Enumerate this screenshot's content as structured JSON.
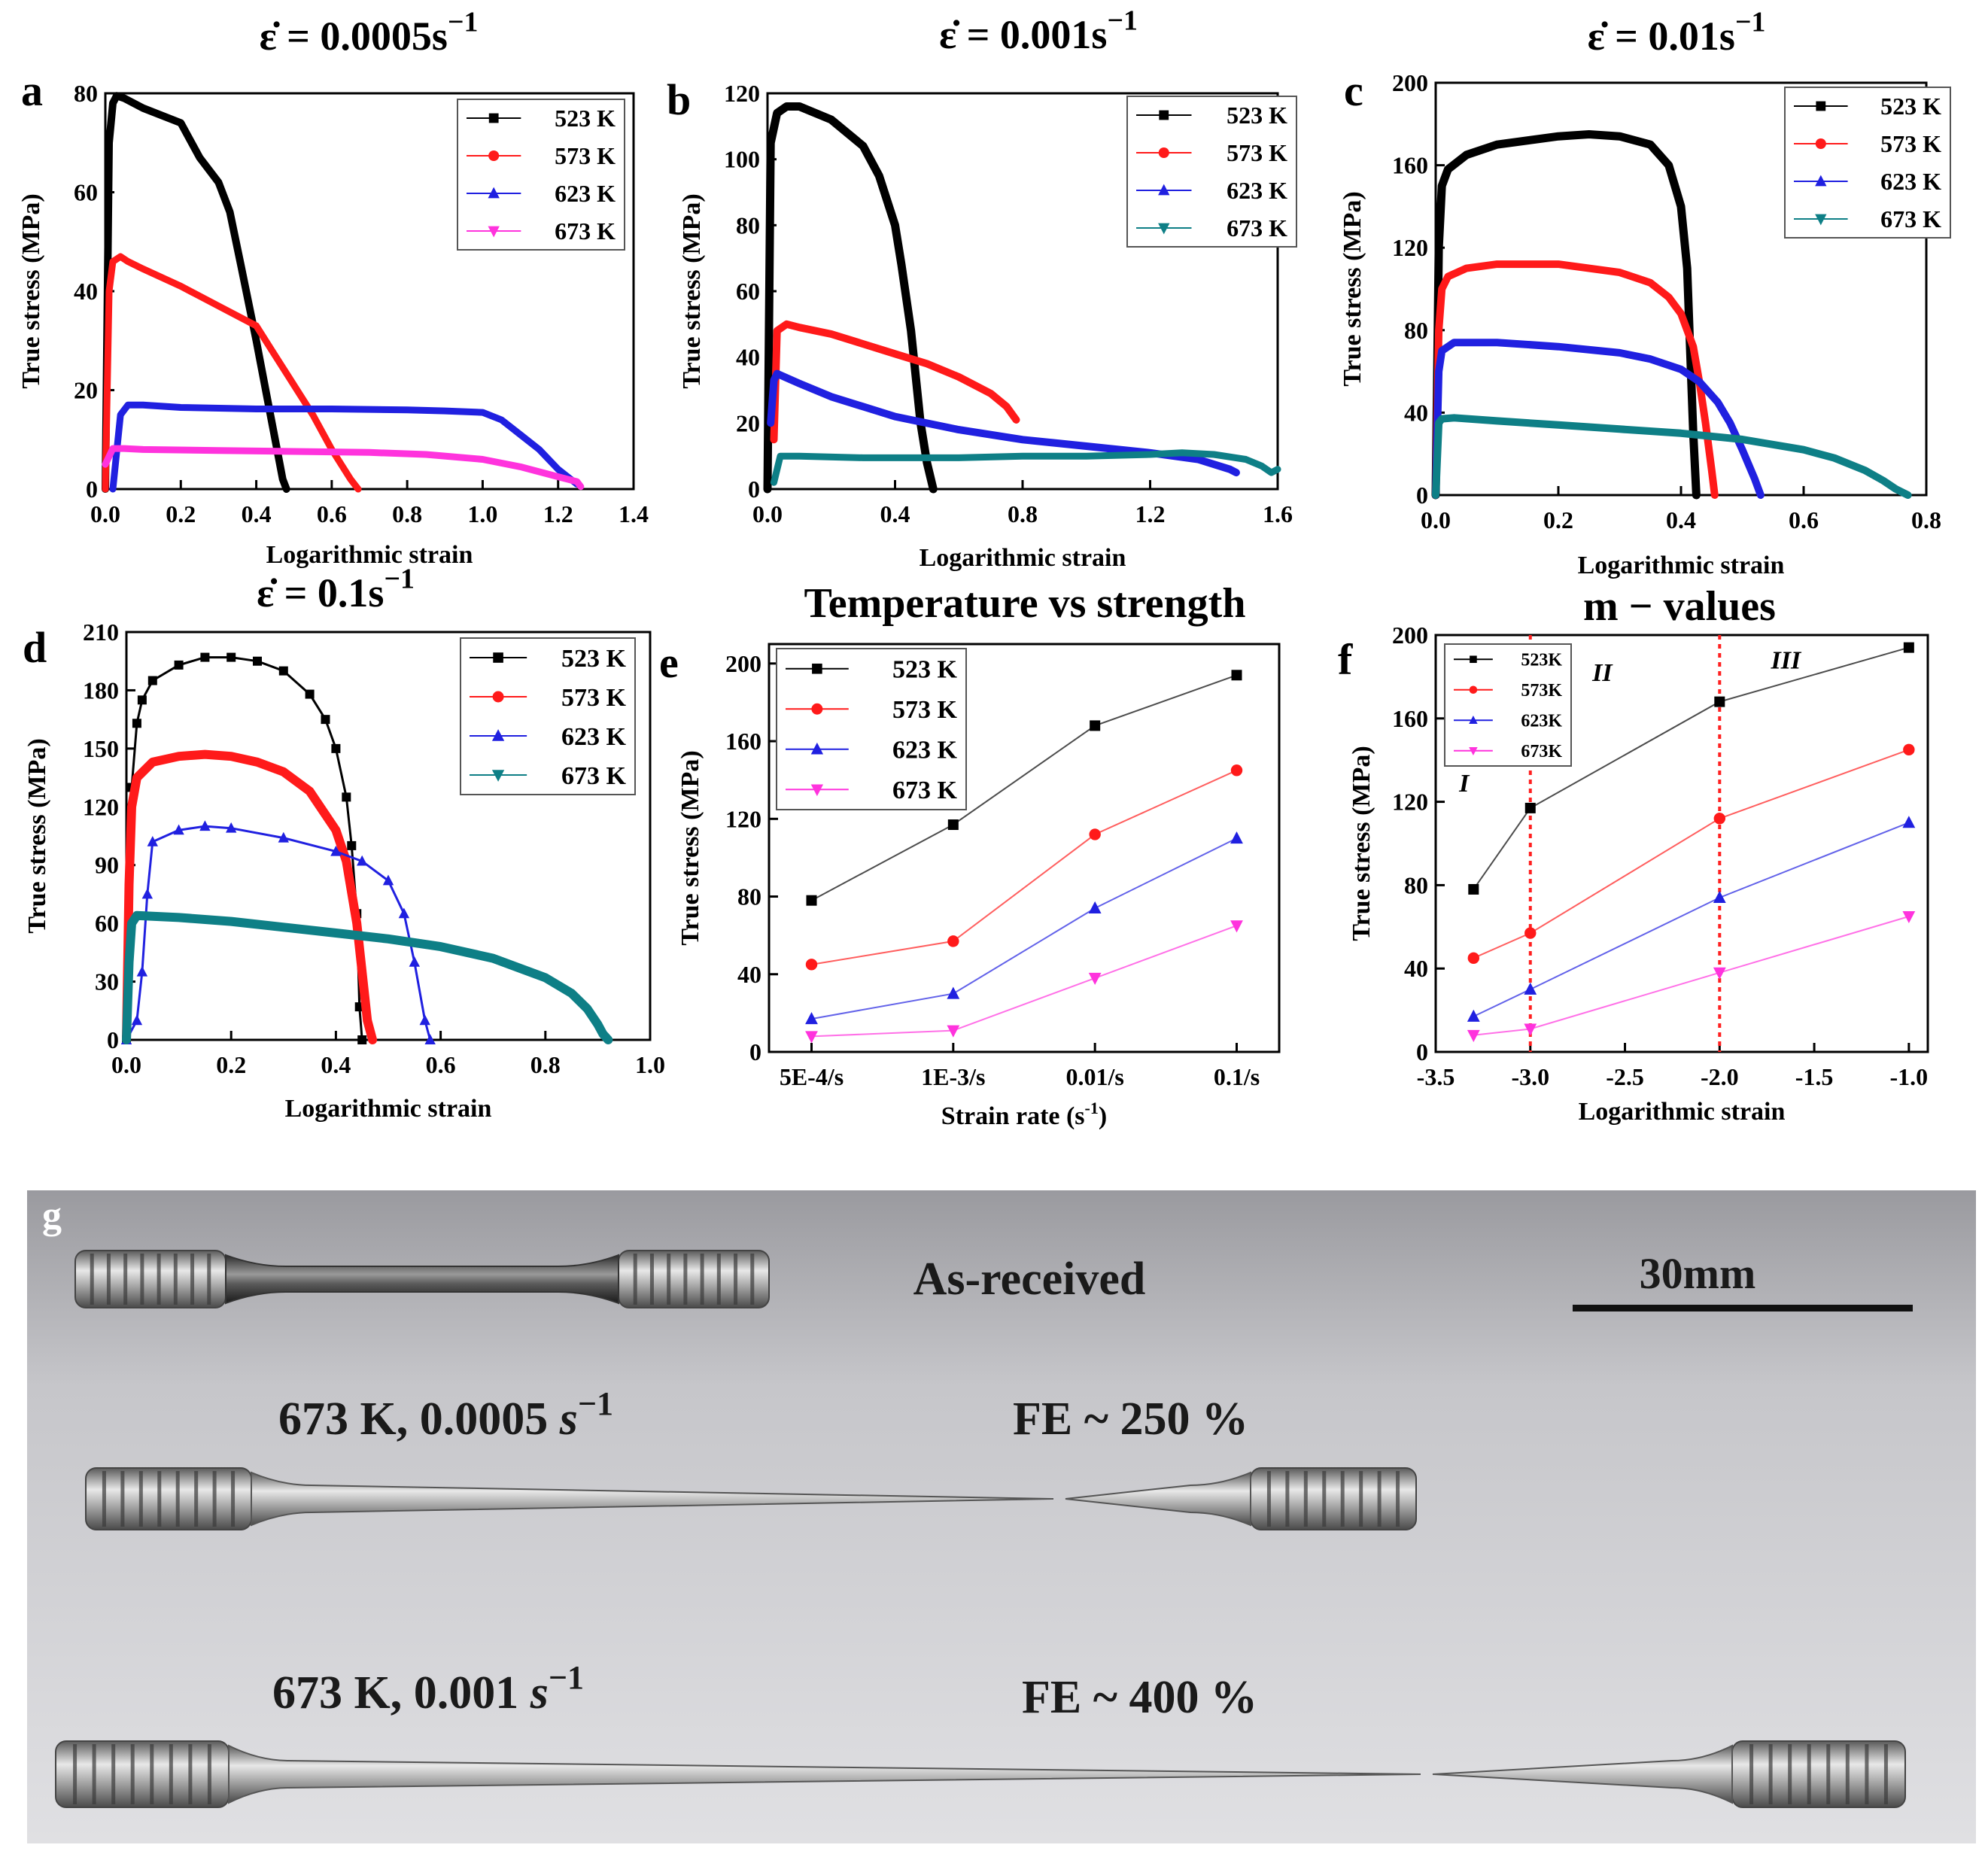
{
  "colors": {
    "c523": "#000000",
    "c573": "#ff1a1a",
    "c623": "#2020e0",
    "c673": "#ff33dd",
    "c673teal": "#0e7f86",
    "guide": "#ff2020"
  },
  "chart_data": [
    {
      "panel": "a",
      "type": "line",
      "title_prefix": "ε̇ = 0.0005s",
      "title_exp": "−1",
      "xlabel": "Logarithmic strain",
      "ylabel": "True stress (MPa)",
      "xlim": [
        0,
        1.4
      ],
      "ylim": [
        0,
        80
      ],
      "xticks": [
        "0.0",
        "0.2",
        "0.4",
        "0.6",
        "0.8",
        "1.0",
        "1.2",
        "1.4"
      ],
      "yticks": [
        "0",
        "20",
        "40",
        "60",
        "80"
      ],
      "legend": [
        "523 K",
        "573 K",
        "623 K",
        "673 K"
      ],
      "series": [
        {
          "name": "523 K",
          "color": "c523",
          "marker": "square",
          "width": 10,
          "x": [
            0,
            0.01,
            0.02,
            0.03,
            0.05,
            0.1,
            0.2,
            0.25,
            0.3,
            0.33,
            0.36,
            0.4,
            0.43,
            0.46,
            0.47,
            0.48
          ],
          "y": [
            0,
            70,
            78,
            79.5,
            79,
            77,
            74,
            67,
            62,
            56,
            45,
            30,
            18,
            6,
            2,
            0
          ]
        },
        {
          "name": "573 K",
          "color": "c573",
          "marker": "circle",
          "width": 9,
          "x": [
            0,
            0.01,
            0.02,
            0.04,
            0.06,
            0.1,
            0.2,
            0.3,
            0.4,
            0.45,
            0.5,
            0.55,
            0.6,
            0.65,
            0.67
          ],
          "y": [
            0,
            40,
            46,
            47,
            46,
            44.5,
            41,
            37,
            33,
            27,
            21,
            15,
            8,
            2,
            0
          ]
        },
        {
          "name": "623 K",
          "color": "c623",
          "marker": "triangle-up",
          "width": 9,
          "x": [
            0.02,
            0.04,
            0.06,
            0.1,
            0.2,
            0.4,
            0.6,
            0.8,
            0.9,
            1.0,
            1.05,
            1.1,
            1.15,
            1.2,
            1.25
          ],
          "y": [
            0,
            15,
            17,
            17,
            16.5,
            16.2,
            16.2,
            16,
            15.8,
            15.5,
            14,
            11,
            8,
            4,
            1
          ]
        },
        {
          "name": "673 K",
          "color": "c673",
          "marker": "triangle-down",
          "width": 9,
          "x": [
            0,
            0.02,
            0.05,
            0.1,
            0.3,
            0.5,
            0.7,
            0.85,
            1.0,
            1.1,
            1.15,
            1.2,
            1.25,
            1.26
          ],
          "y": [
            5,
            8.2,
            8.2,
            8,
            7.8,
            7.6,
            7.4,
            7,
            6,
            4.5,
            3.5,
            2.5,
            1.5,
            0.5
          ]
        }
      ]
    },
    {
      "panel": "b",
      "type": "line",
      "title_prefix": "ε̇ = 0.001s",
      "title_exp": "−1",
      "xlabel": "Logarithmic strain",
      "ylabel": "True stress (MPa)",
      "xlim": [
        0,
        1.6
      ],
      "ylim": [
        0,
        120
      ],
      "xticks": [
        "0.0",
        "0.4",
        "0.8",
        "1.2",
        "1.6"
      ],
      "yticks": [
        "0",
        "20",
        "40",
        "60",
        "80",
        "100",
        "120"
      ],
      "legend": [
        "523 K",
        "573 K",
        "623 K",
        "673 K"
      ],
      "series": [
        {
          "name": "523 K",
          "color": "c523",
          "marker": "square",
          "width": 11,
          "x": [
            0,
            0.01,
            0.03,
            0.06,
            0.1,
            0.2,
            0.3,
            0.35,
            0.4,
            0.42,
            0.45,
            0.48,
            0.5,
            0.52
          ],
          "y": [
            0,
            105,
            114,
            116,
            116,
            112,
            104,
            95,
            80,
            68,
            48,
            20,
            8,
            0
          ]
        },
        {
          "name": "573 K",
          "color": "c573",
          "marker": "circle",
          "width": 10,
          "x": [
            0.02,
            0.03,
            0.06,
            0.1,
            0.2,
            0.3,
            0.4,
            0.5,
            0.6,
            0.7,
            0.75,
            0.78
          ],
          "y": [
            15,
            48,
            50,
            49,
            47,
            44,
            41,
            38,
            34,
            29,
            25,
            21
          ]
        },
        {
          "name": "623 K",
          "color": "c623",
          "marker": "triangle-up",
          "width": 10,
          "x": [
            0.01,
            0.02,
            0.03,
            0.1,
            0.2,
            0.4,
            0.6,
            0.8,
            1.0,
            1.2,
            1.35,
            1.45,
            1.47
          ],
          "y": [
            20,
            33,
            35,
            32,
            28,
            22,
            18,
            15,
            13,
            11,
            9,
            6,
            5
          ]
        },
        {
          "name": "673 K",
          "color": "c673teal",
          "marker": "triangle-down",
          "width": 9,
          "x": [
            0.02,
            0.04,
            0.1,
            0.3,
            0.6,
            0.8,
            1.0,
            1.2,
            1.3,
            1.4,
            1.5,
            1.55,
            1.58,
            1.6
          ],
          "y": [
            2,
            10,
            10,
            9.5,
            9.5,
            10,
            10,
            10.5,
            11,
            10.5,
            9,
            7,
            5,
            6
          ]
        }
      ]
    },
    {
      "panel": "c",
      "type": "line",
      "title_prefix": "ε̇ = 0.01s",
      "title_exp": "−1",
      "xlabel": "Logarithmic strain",
      "ylabel": "True stress (MPa)",
      "xlim": [
        0,
        0.8
      ],
      "ylim": [
        0,
        200
      ],
      "xticks": [
        "0.0",
        "0.2",
        "0.4",
        "0.6",
        "0.8"
      ],
      "yticks": [
        "0",
        "40",
        "80",
        "120",
        "160",
        "200"
      ],
      "legend": [
        "523 K",
        "573 K",
        "623 K",
        "673 K"
      ],
      "series": [
        {
          "name": "523 K",
          "color": "c523",
          "marker": "square",
          "width": 11,
          "x": [
            0,
            0.005,
            0.01,
            0.02,
            0.05,
            0.1,
            0.2,
            0.25,
            0.3,
            0.35,
            0.38,
            0.4,
            0.41,
            0.415,
            0.42,
            0.425
          ],
          "y": [
            0,
            120,
            150,
            158,
            165,
            170,
            174,
            175,
            174,
            170,
            160,
            140,
            110,
            70,
            30,
            0
          ]
        },
        {
          "name": "573 K",
          "color": "c573",
          "marker": "circle",
          "width": 10,
          "x": [
            0,
            0.005,
            0.01,
            0.02,
            0.05,
            0.1,
            0.2,
            0.3,
            0.35,
            0.38,
            0.4,
            0.42,
            0.43,
            0.44,
            0.45,
            0.455
          ],
          "y": [
            0,
            80,
            100,
            106,
            110,
            112,
            112,
            108,
            103,
            96,
            88,
            72,
            55,
            35,
            12,
            0
          ]
        },
        {
          "name": "623 K",
          "color": "c623",
          "marker": "triangle-up",
          "width": 10,
          "x": [
            0,
            0.005,
            0.01,
            0.03,
            0.1,
            0.2,
            0.3,
            0.35,
            0.4,
            0.43,
            0.46,
            0.48,
            0.5,
            0.52,
            0.53
          ],
          "y": [
            0,
            60,
            70,
            74,
            74,
            72,
            69,
            66,
            61,
            55,
            45,
            35,
            22,
            8,
            0
          ]
        },
        {
          "name": "673 K",
          "color": "c673teal",
          "marker": "triangle-down",
          "width": 10,
          "x": [
            0,
            0.005,
            0.01,
            0.03,
            0.1,
            0.2,
            0.3,
            0.4,
            0.5,
            0.6,
            0.65,
            0.7,
            0.73,
            0.75,
            0.77
          ],
          "y": [
            0,
            35,
            37,
            37.5,
            36,
            34,
            32,
            30,
            27,
            22,
            18,
            12,
            7,
            3,
            0
          ]
        }
      ]
    },
    {
      "panel": "d",
      "type": "line",
      "title_prefix": "ε̇ = 0.1s",
      "title_exp": "−1",
      "xlabel": "Logarithmic strain",
      "ylabel": "True stress (MPa)",
      "xlim": [
        0,
        1.0
      ],
      "ylim": [
        0,
        210
      ],
      "xticks": [
        "0.0",
        "0.2",
        "0.4",
        "0.6",
        "0.8",
        "1.0"
      ],
      "yticks": [
        "0",
        "30",
        "60",
        "90",
        "120",
        "150",
        "180",
        "210"
      ],
      "legend": [
        "523 K",
        "573 K",
        "623 K",
        "673  K"
      ],
      "series": [
        {
          "name": "523 K",
          "color": "c523",
          "marker": "square",
          "width": 3,
          "x": [
            0,
            0.01,
            0.02,
            0.03,
            0.05,
            0.1,
            0.15,
            0.2,
            0.25,
            0.3,
            0.35,
            0.38,
            0.4,
            0.42,
            0.43,
            0.44,
            0.445,
            0.45
          ],
          "y": [
            0,
            130,
            163,
            175,
            185,
            193,
            197,
            197,
            195,
            190,
            178,
            165,
            150,
            125,
            100,
            65,
            17,
            0
          ]
        },
        {
          "name": "573 K",
          "color": "c573",
          "marker": "circle",
          "width": 12,
          "x": [
            0,
            0.005,
            0.01,
            0.02,
            0.05,
            0.1,
            0.15,
            0.2,
            0.25,
            0.3,
            0.35,
            0.4,
            0.42,
            0.44,
            0.45,
            0.46,
            0.47
          ],
          "y": [
            0,
            80,
            120,
            135,
            143,
            146,
            147,
            146,
            143,
            138,
            128,
            108,
            92,
            60,
            35,
            10,
            0
          ]
        },
        {
          "name": "623 K",
          "color": "c623",
          "marker": "triangle-up",
          "width": 3,
          "x": [
            0,
            0.02,
            0.03,
            0.04,
            0.05,
            0.1,
            0.15,
            0.2,
            0.3,
            0.4,
            0.45,
            0.5,
            0.53,
            0.55,
            0.57,
            0.58
          ],
          "y": [
            0,
            10,
            35,
            75,
            102,
            108,
            110,
            109,
            104,
            97,
            92,
            82,
            65,
            40,
            10,
            0
          ]
        },
        {
          "name": "673  K",
          "color": "c673teal",
          "marker": "triangle-down",
          "width": 12,
          "x": [
            0,
            0.005,
            0.01,
            0.02,
            0.1,
            0.2,
            0.3,
            0.4,
            0.5,
            0.6,
            0.7,
            0.8,
            0.85,
            0.88,
            0.9,
            0.91,
            0.92
          ],
          "y": [
            0,
            40,
            60,
            64,
            63,
            61,
            58,
            55,
            52,
            48,
            42,
            32,
            24,
            16,
            8,
            3,
            0
          ]
        }
      ]
    },
    {
      "panel": "e",
      "type": "line",
      "title": "Temperature vs strength",
      "xlabel": "Strain rate (s",
      "xlabel_exp": "-1",
      "xlabel_suffix": ")",
      "ylabel": "True stress (MPa)",
      "categories": [
        "5E-4/s",
        "1E-3/s",
        "0.01/s",
        "0.1/s"
      ],
      "ylim": [
        0,
        210
      ],
      "yticks": [
        "0",
        "40",
        "80",
        "120",
        "160",
        "200"
      ],
      "legend": [
        "523 K",
        "573 K",
        "623 K",
        "673 K"
      ],
      "series": [
        {
          "name": "523 K",
          "color": "c523",
          "marker": "square",
          "values": [
            78,
            117,
            168,
            194
          ]
        },
        {
          "name": "573 K",
          "color": "c573",
          "marker": "circle",
          "values": [
            45,
            57,
            112,
            145
          ]
        },
        {
          "name": "623 K",
          "color": "c623",
          "marker": "triangle-up",
          "values": [
            17,
            30,
            74,
            110
          ]
        },
        {
          "name": "673 K",
          "color": "c673",
          "marker": "triangle-down",
          "values": [
            8,
            11,
            38,
            65
          ]
        }
      ]
    },
    {
      "panel": "f",
      "type": "line",
      "title": "m − values",
      "xlabel": "Logarithmic strain",
      "ylabel": "True stress (MPa)",
      "xlim": [
        -3.5,
        -0.9
      ],
      "ylim": [
        0,
        200
      ],
      "xticks": [
        "-3.5",
        "-3.0",
        "-2.5",
        "-2.0",
        "-1.5",
        "-1.0"
      ],
      "yticks": [
        "0",
        "40",
        "80",
        "120",
        "160",
        "200"
      ],
      "legend": [
        "523K",
        "573K",
        "623K",
        "673K"
      ],
      "guides_x": [
        -3.0,
        -2.0
      ],
      "regions": [
        "I",
        "II",
        "III"
      ],
      "series": [
        {
          "name": "523K",
          "color": "c523",
          "marker": "square",
          "x": [
            -3.3,
            -3.0,
            -2.0,
            -1.0
          ],
          "y": [
            78,
            117,
            168,
            194
          ]
        },
        {
          "name": "573K",
          "color": "c573",
          "marker": "circle",
          "x": [
            -3.3,
            -3.0,
            -2.0,
            -1.0
          ],
          "y": [
            45,
            57,
            112,
            145
          ]
        },
        {
          "name": "623K",
          "color": "c623",
          "marker": "triangle-up",
          "x": [
            -3.3,
            -3.0,
            -2.0,
            -1.0
          ],
          "y": [
            17,
            30,
            74,
            110
          ]
        },
        {
          "name": "673K",
          "color": "c673",
          "marker": "triangle-down",
          "x": [
            -3.3,
            -3.0,
            -2.0,
            -1.0
          ],
          "y": [
            8,
            11,
            38,
            65
          ]
        }
      ]
    }
  ],
  "photo": {
    "panel": "g",
    "as_received": "As-received",
    "scale_label": "30mm",
    "sample1_condition": "673 K, 0.0005 ",
    "sample1_unit": "s",
    "sample1_exp": "−1",
    "sample1_fe": "FE ~  250 %",
    "sample2_condition": "673 K, 0.001 ",
    "sample2_unit": "s",
    "sample2_exp": "−1",
    "sample2_fe": "FE ~  400 %"
  }
}
